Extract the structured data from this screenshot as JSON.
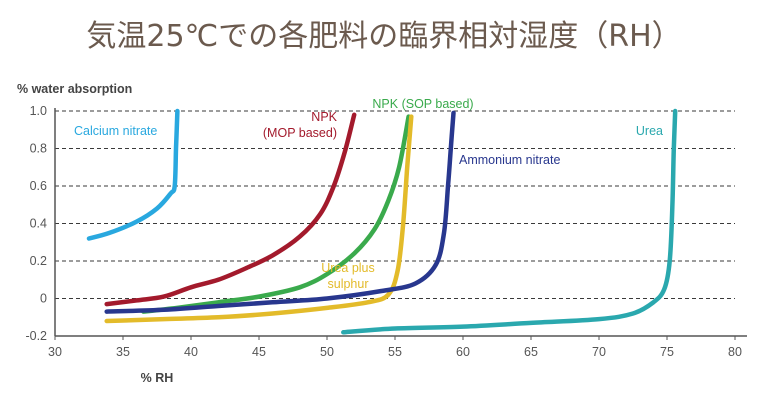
{
  "chart_data": {
    "type": "line",
    "title": "気温25℃での各肥料の臨界相対湿度（RH）",
    "xlabel": "% RH",
    "ylabel": "% water absorption",
    "xlim": [
      30,
      80
    ],
    "ylim": [
      -0.2,
      1.0
    ],
    "x_ticks": [
      "30",
      "35",
      "40",
      "45",
      "50",
      "55",
      "60",
      "65",
      "70",
      "75",
      "80"
    ],
    "y_ticks": [
      "-0.2",
      "0",
      "0.2",
      "0.4",
      "0.6",
      "0.8",
      "1.0"
    ],
    "x_tick_values": [
      30,
      35,
      40,
      45,
      50,
      55,
      60,
      65,
      70,
      75,
      80
    ],
    "y_tick_values": [
      -0.2,
      0,
      0.2,
      0.4,
      0.6,
      0.8,
      1.0
    ],
    "grid": "horizontal dashed",
    "legend": "inline labels",
    "series": [
      {
        "name": "Calcium nitrate",
        "color": "#29a8df",
        "points": [
          [
            32.5,
            0.32
          ],
          [
            34,
            0.35
          ],
          [
            36,
            0.41
          ],
          [
            37.5,
            0.48
          ],
          [
            38.5,
            0.56
          ],
          [
            38.8,
            0.6
          ],
          [
            38.9,
            0.8
          ],
          [
            39,
            1.0
          ]
        ]
      },
      {
        "name": "NPK (MOP based)",
        "color": "#a31a2c",
        "points": [
          [
            33.8,
            -0.03
          ],
          [
            36,
            -0.01
          ],
          [
            38,
            0.01
          ],
          [
            40,
            0.06
          ],
          [
            42,
            0.1
          ],
          [
            44,
            0.16
          ],
          [
            46,
            0.23
          ],
          [
            48,
            0.33
          ],
          [
            49.5,
            0.45
          ],
          [
            50.5,
            0.6
          ],
          [
            51.3,
            0.78
          ],
          [
            52,
            0.98
          ]
        ]
      },
      {
        "name": "NPK (SOP based)",
        "color": "#3aaa4c",
        "points": [
          [
            36.5,
            -0.07
          ],
          [
            39,
            -0.05
          ],
          [
            42,
            -0.02
          ],
          [
            45,
            0.01
          ],
          [
            48,
            0.06
          ],
          [
            50,
            0.13
          ],
          [
            52,
            0.24
          ],
          [
            53.5,
            0.37
          ],
          [
            54.5,
            0.52
          ],
          [
            55.3,
            0.7
          ],
          [
            56,
            0.97
          ]
        ]
      },
      {
        "name": "Urea plus sulphur",
        "color": "#e3bb2a",
        "points": [
          [
            33.8,
            -0.12
          ],
          [
            38,
            -0.11
          ],
          [
            42,
            -0.1
          ],
          [
            46,
            -0.08
          ],
          [
            50,
            -0.05
          ],
          [
            53,
            -0.02
          ],
          [
            54.5,
            0.02
          ],
          [
            55.2,
            0.15
          ],
          [
            55.6,
            0.4
          ],
          [
            55.9,
            0.7
          ],
          [
            56.2,
            0.97
          ]
        ]
      },
      {
        "name": "Ammonium nitrate",
        "color": "#28378e",
        "points": [
          [
            33.8,
            -0.07
          ],
          [
            38,
            -0.06
          ],
          [
            42,
            -0.04
          ],
          [
            46,
            -0.02
          ],
          [
            50,
            0.0
          ],
          [
            54,
            0.04
          ],
          [
            56.5,
            0.08
          ],
          [
            58,
            0.18
          ],
          [
            58.6,
            0.35
          ],
          [
            58.9,
            0.6
          ],
          [
            59.1,
            0.8
          ],
          [
            59.3,
            0.99
          ]
        ]
      },
      {
        "name": "Urea",
        "color": "#2aa8ae",
        "points": [
          [
            51.2,
            -0.18
          ],
          [
            55,
            -0.16
          ],
          [
            60,
            -0.15
          ],
          [
            65,
            -0.13
          ],
          [
            70,
            -0.11
          ],
          [
            72.5,
            -0.08
          ],
          [
            74,
            -0.02
          ],
          [
            74.8,
            0.05
          ],
          [
            75.2,
            0.2
          ],
          [
            75.4,
            0.5
          ],
          [
            75.5,
            0.8
          ],
          [
            75.6,
            1.0
          ]
        ]
      }
    ]
  }
}
